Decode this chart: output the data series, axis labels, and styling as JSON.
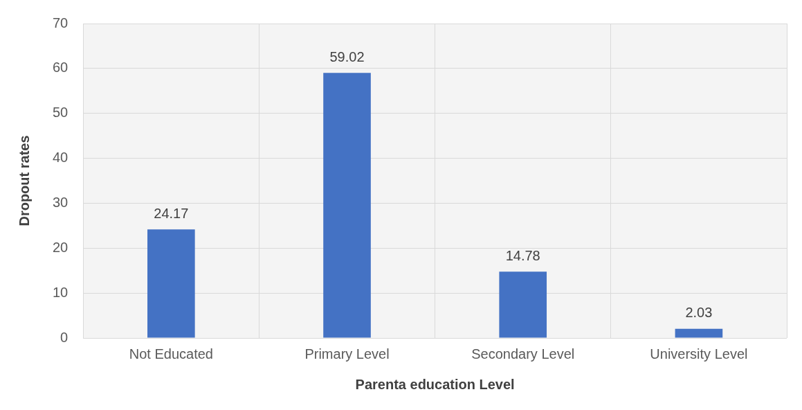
{
  "chart_data": {
    "type": "bar",
    "xlabel": "Parenta education Level",
    "ylabel": "Dropout rates",
    "categories": [
      "Not Educated",
      "Primary Level",
      "Secondary Level",
      "University Level"
    ],
    "values": [
      24.17,
      59.02,
      14.78,
      2.03
    ],
    "color": "#4472c4",
    "ylim": [
      0,
      70
    ],
    "yticks": [
      0,
      10,
      20,
      30,
      40,
      50,
      60,
      70
    ],
    "grid": true,
    "data_labels": true
  }
}
